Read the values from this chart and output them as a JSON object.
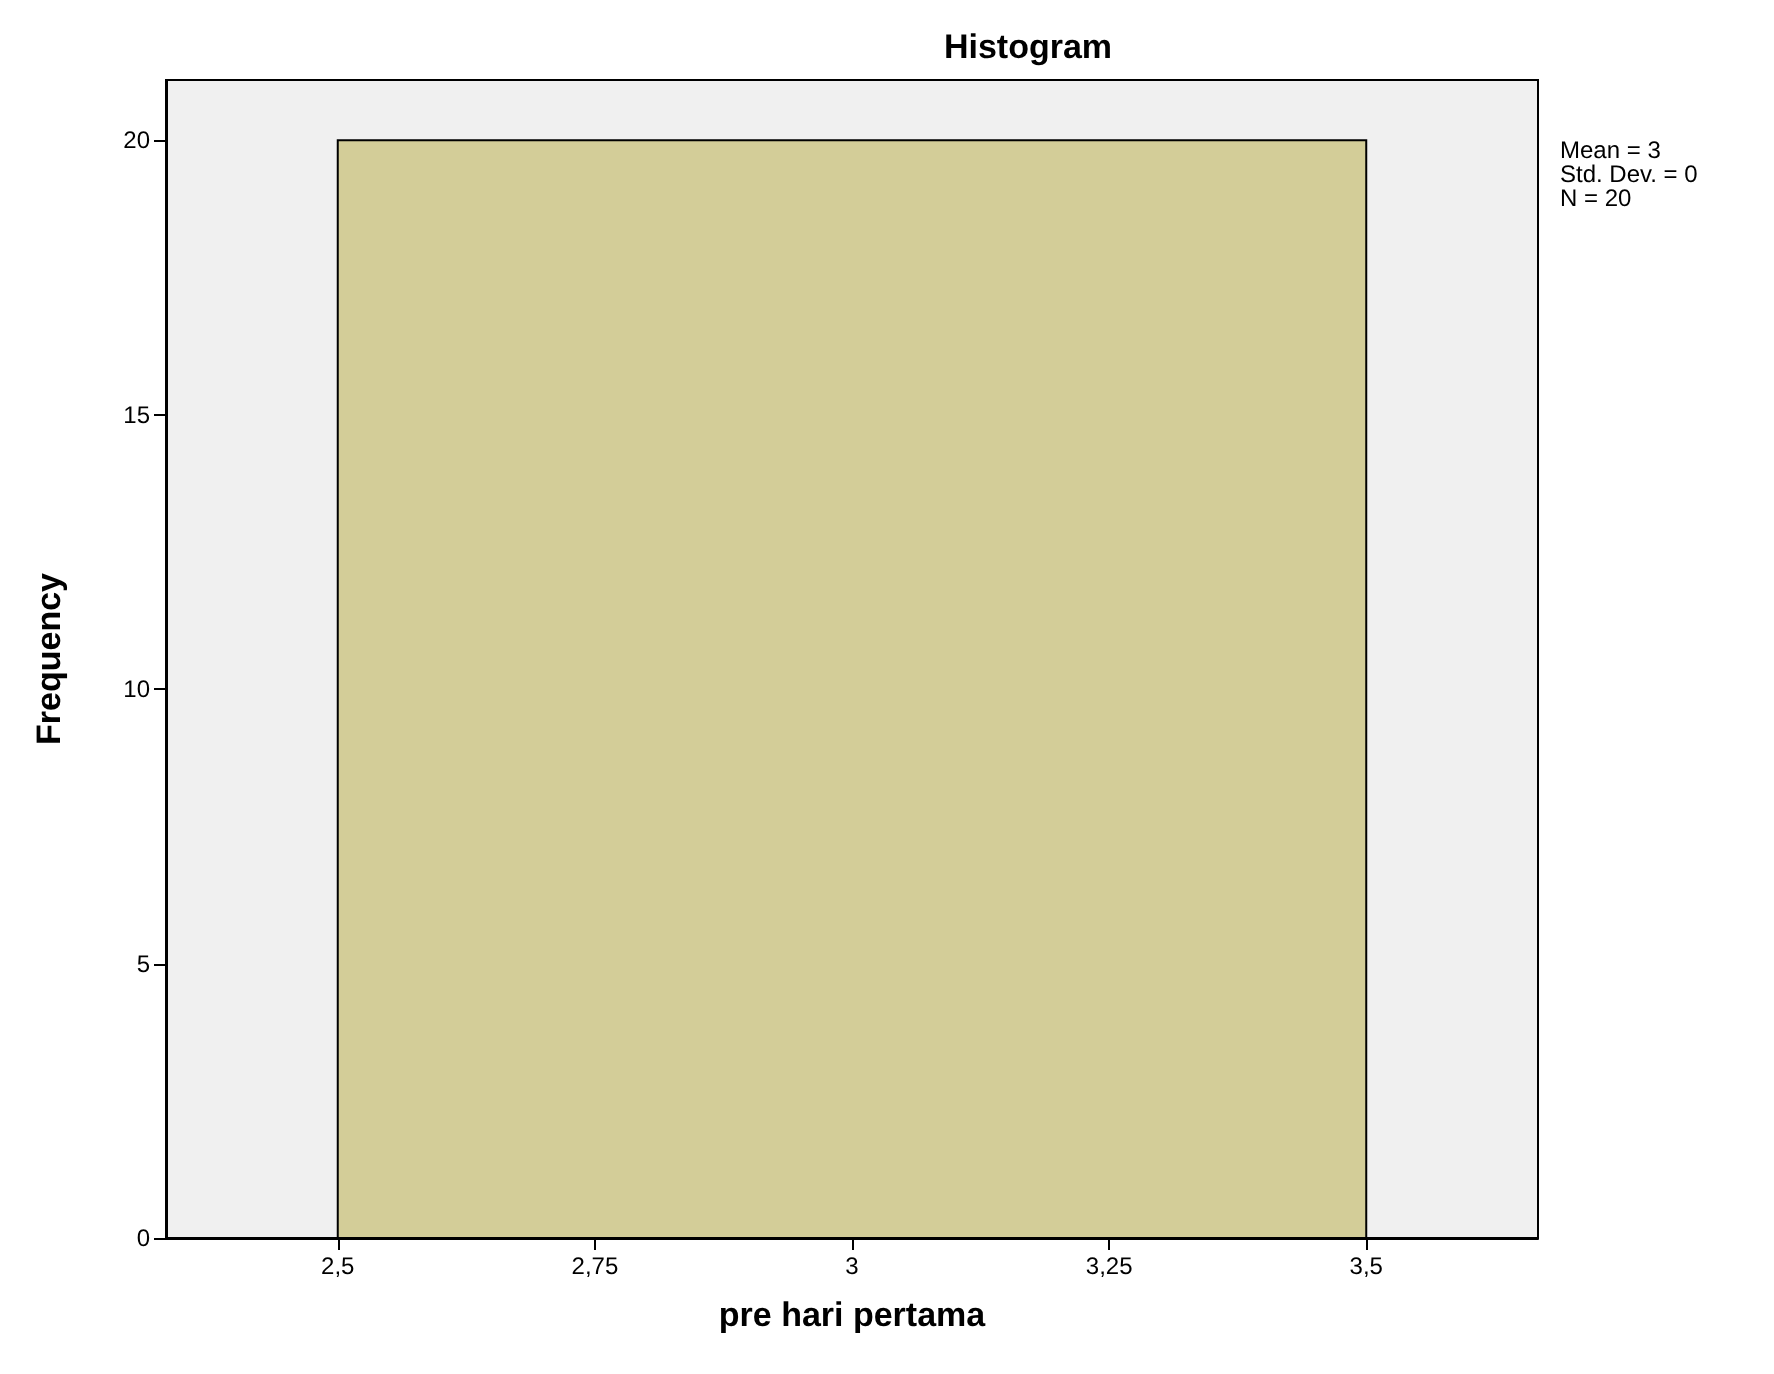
{
  "chart_data": {
    "type": "histogram",
    "title": "Histogram",
    "xlabel": "pre hari pertama",
    "ylabel": "Frequency",
    "bins": [
      2.5,
      3.5
    ],
    "values": [
      20
    ],
    "color": "#d3cd98",
    "xlim": [
      2.333,
      3.667
    ],
    "xticks": [
      {
        "value": 2.5,
        "label": "2,5"
      },
      {
        "value": 2.75,
        "label": "2,75"
      },
      3,
      {
        "value": 3.25,
        "label": "3,25"
      },
      {
        "value": 3.5,
        "label": "3,5"
      }
    ],
    "ylim": [
      0,
      21.1
    ],
    "yticks": [
      0,
      5,
      10,
      15,
      20
    ],
    "annotations": [
      "Mean = 3",
      "Std. Dev. = 0",
      "N = 20"
    ],
    "grid": false
  }
}
